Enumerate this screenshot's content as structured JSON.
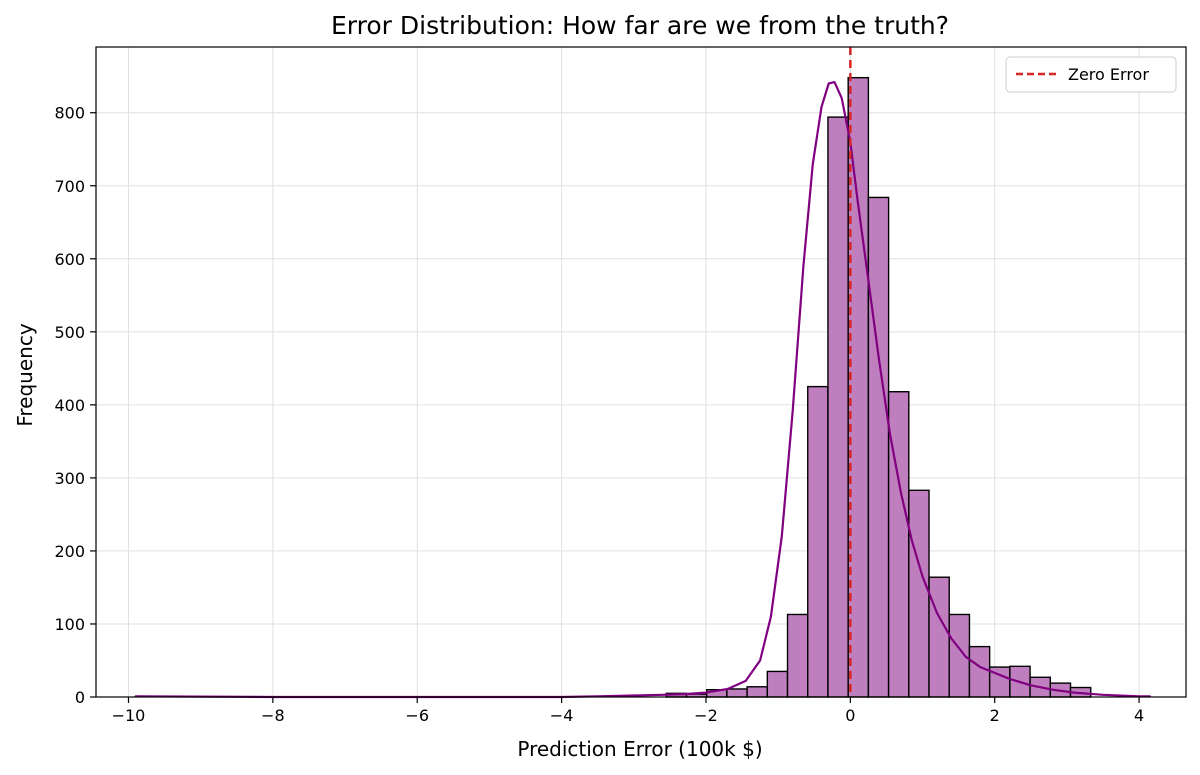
{
  "chart_data": {
    "type": "bar",
    "title": "Error Distribution: How far are we from the truth?",
    "xlabel": "Prediction Error (100k $)",
    "ylabel": "Frequency",
    "xlim": [
      -10.45,
      4.65
    ],
    "ylim": [
      0,
      890
    ],
    "xticks": [
      -10,
      -8,
      -6,
      -4,
      -2,
      0,
      2,
      4
    ],
    "xtick_labels": [
      "−10",
      "−8",
      "−6",
      "−4",
      "−2",
      "0",
      "2",
      "4"
    ],
    "yticks": [
      0,
      100,
      200,
      300,
      400,
      500,
      600,
      700,
      800
    ],
    "ytick_labels": [
      "0",
      "100",
      "200",
      "300",
      "400",
      "500",
      "600",
      "700",
      "800"
    ],
    "grid": true,
    "legend_position": "top-right",
    "bin_width": 0.28,
    "bins": [
      {
        "x0": -2.55,
        "value": 5
      },
      {
        "x0": -2.27,
        "value": 4
      },
      {
        "x0": -1.99,
        "value": 10
      },
      {
        "x0": -1.71,
        "value": 11
      },
      {
        "x0": -1.43,
        "value": 14
      },
      {
        "x0": -1.15,
        "value": 35
      },
      {
        "x0": -0.87,
        "value": 113
      },
      {
        "x0": -0.59,
        "value": 425
      },
      {
        "x0": -0.31,
        "value": 794
      },
      {
        "x0": -0.03,
        "value": 848
      },
      {
        "x0": 0.25,
        "value": 684
      },
      {
        "x0": 0.53,
        "value": 418
      },
      {
        "x0": 0.81,
        "value": 283
      },
      {
        "x0": 1.09,
        "value": 164
      },
      {
        "x0": 1.37,
        "value": 113
      },
      {
        "x0": 1.65,
        "value": 69
      },
      {
        "x0": 1.93,
        "value": 41
      },
      {
        "x0": 2.21,
        "value": 42
      },
      {
        "x0": 2.49,
        "value": 27
      },
      {
        "x0": 2.77,
        "value": 19
      },
      {
        "x0": 3.05,
        "value": 13
      }
    ],
    "kde": [
      [
        -9.9,
        1
      ],
      [
        -8,
        0
      ],
      [
        -6,
        0
      ],
      [
        -4,
        0
      ],
      [
        -3.5,
        1
      ],
      [
        -3,
        2
      ],
      [
        -2.6,
        3
      ],
      [
        -2.3,
        4
      ],
      [
        -2.0,
        6
      ],
      [
        -1.7,
        11
      ],
      [
        -1.45,
        22
      ],
      [
        -1.25,
        50
      ],
      [
        -1.1,
        110
      ],
      [
        -0.95,
        220
      ],
      [
        -0.8,
        390
      ],
      [
        -0.65,
        590
      ],
      [
        -0.52,
        730
      ],
      [
        -0.4,
        808
      ],
      [
        -0.3,
        840
      ],
      [
        -0.22,
        842
      ],
      [
        -0.12,
        820
      ],
      [
        0.0,
        760
      ],
      [
        0.1,
        680
      ],
      [
        0.25,
        570
      ],
      [
        0.4,
        460
      ],
      [
        0.55,
        360
      ],
      [
        0.7,
        280
      ],
      [
        0.85,
        215
      ],
      [
        1.0,
        165
      ],
      [
        1.2,
        115
      ],
      [
        1.4,
        80
      ],
      [
        1.6,
        55
      ],
      [
        1.8,
        41
      ],
      [
        2.0,
        33
      ],
      [
        2.2,
        25
      ],
      [
        2.5,
        16
      ],
      [
        2.8,
        10
      ],
      [
        3.1,
        6
      ],
      [
        3.5,
        3
      ],
      [
        4.0,
        1
      ],
      [
        4.15,
        1
      ]
    ],
    "reference_line": {
      "x": 0,
      "label": "Zero Error"
    },
    "colors": {
      "bar_fill": "#bf7fbf",
      "bar_edge": "#000000",
      "kde_line": "#800080",
      "reference_line": "#d62728",
      "grid": "#e0e0e0"
    }
  }
}
